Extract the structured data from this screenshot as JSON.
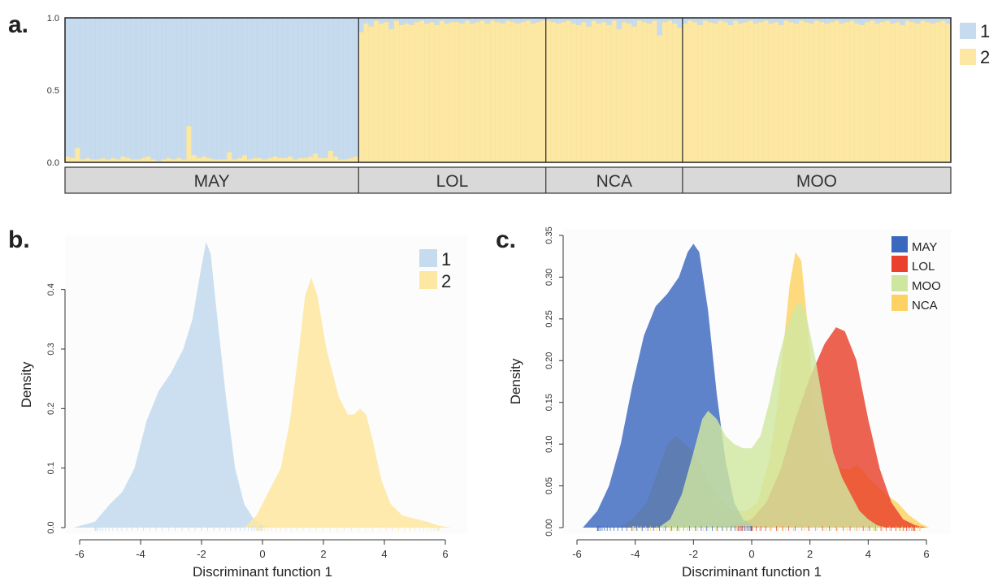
{
  "panel_labels": [
    "a.",
    "b.",
    "c."
  ],
  "chart_data": [
    {
      "type": "bar",
      "panel": "a.",
      "stacked": true,
      "ylim": [
        0,
        1
      ],
      "yticks": [
        "0.0",
        "0.5",
        "1.0"
      ],
      "series": [
        {
          "name": "1",
          "color": "#c6dcee"
        },
        {
          "name": "2",
          "color": "#fde8a3"
        }
      ],
      "groups": [
        {
          "label": "MAY",
          "n": 58,
          "cluster2": [
            0.04,
            0.03,
            0.1,
            0.02,
            0.03,
            0.02,
            0.02,
            0.03,
            0.02,
            0.03,
            0.02,
            0.04,
            0.03,
            0.02,
            0.02,
            0.03,
            0.04,
            0.02,
            0.01,
            0.02,
            0.03,
            0.02,
            0.03,
            0.02,
            0.25,
            0.05,
            0.03,
            0.04,
            0.03,
            0.02,
            0.02,
            0.02,
            0.07,
            0.02,
            0.03,
            0.05,
            0.02,
            0.03,
            0.03,
            0.02,
            0.03,
            0.04,
            0.03,
            0.03,
            0.04,
            0.02,
            0.03,
            0.03,
            0.04,
            0.06,
            0.03,
            0.03,
            0.08,
            0.04,
            0.02,
            0.02,
            0.03,
            0.04
          ]
        },
        {
          "label": "LOL",
          "n": 37,
          "cluster2": [
            0.9,
            0.96,
            0.94,
            0.98,
            0.96,
            0.97,
            0.92,
            0.98,
            0.95,
            0.96,
            0.95,
            0.97,
            0.98,
            0.96,
            0.97,
            0.95,
            0.98,
            0.96,
            0.97,
            0.97,
            0.96,
            0.98,
            0.96,
            0.97,
            0.98,
            0.96,
            0.98,
            0.97,
            0.96,
            0.98,
            0.97,
            0.96,
            0.97,
            0.98,
            0.96,
            0.97,
            0.98
          ]
        },
        {
          "label": "NCA",
          "n": 27,
          "cluster2": [
            0.98,
            0.97,
            0.96,
            0.97,
            0.98,
            0.96,
            0.95,
            0.97,
            0.94,
            0.98,
            0.96,
            0.97,
            0.95,
            0.98,
            0.92,
            0.97,
            0.96,
            0.94,
            0.98,
            0.97,
            0.96,
            0.98,
            0.88,
            0.97,
            0.98,
            0.96,
            0.93
          ]
        },
        {
          "label": "MOO",
          "n": 53,
          "cluster2": [
            0.96,
            0.98,
            0.97,
            0.95,
            0.98,
            0.97,
            0.96,
            0.98,
            0.97,
            0.95,
            0.98,
            0.96,
            0.97,
            0.98,
            0.96,
            0.97,
            0.98,
            0.96,
            0.97,
            0.95,
            0.98,
            0.97,
            0.96,
            0.98,
            0.97,
            0.96,
            0.98,
            0.97,
            0.96,
            0.97,
            0.98,
            0.96,
            0.97,
            0.98,
            0.96,
            0.95,
            0.97,
            0.98,
            0.96,
            0.97,
            0.98,
            0.96,
            0.97,
            0.95,
            0.98,
            0.97,
            0.96,
            0.98,
            0.97,
            0.96,
            0.97,
            0.98,
            0.96
          ]
        }
      ],
      "legend": [
        "1",
        "2"
      ]
    },
    {
      "type": "area",
      "panel": "b.",
      "xlabel": "Discriminant function 1",
      "ylabel": "Density",
      "xlim": [
        -6,
        6
      ],
      "ylim": [
        0,
        0.48
      ],
      "xticks": [
        "-6",
        "-4",
        "-2",
        "0",
        "2",
        "4",
        "6"
      ],
      "yticks": [
        "0.0",
        "0.1",
        "0.2",
        "0.3",
        "0.4"
      ],
      "legend": [
        "1",
        "2"
      ],
      "series": [
        {
          "name": "1",
          "color": "#c6dcee",
          "x": [
            -6.2,
            -5.5,
            -5.0,
            -4.6,
            -4.2,
            -3.8,
            -3.4,
            -3.0,
            -2.6,
            -2.3,
            -2.0,
            -1.85,
            -1.7,
            -1.5,
            -1.2,
            -0.9,
            -0.6,
            -0.3,
            0.0,
            0.3
          ],
          "y": [
            0.0,
            0.01,
            0.04,
            0.06,
            0.1,
            0.18,
            0.23,
            0.26,
            0.3,
            0.35,
            0.44,
            0.48,
            0.46,
            0.36,
            0.22,
            0.1,
            0.04,
            0.015,
            0.005,
            0.0
          ]
        },
        {
          "name": "2",
          "color": "#fde8a3",
          "x": [
            -0.6,
            -0.2,
            0.2,
            0.6,
            0.9,
            1.2,
            1.4,
            1.6,
            1.8,
            2.1,
            2.5,
            2.8,
            3.0,
            3.2,
            3.4,
            3.6,
            3.9,
            4.2,
            4.6,
            5.0,
            5.4,
            5.8,
            6.2
          ],
          "y": [
            0.0,
            0.02,
            0.06,
            0.1,
            0.18,
            0.3,
            0.39,
            0.42,
            0.39,
            0.3,
            0.22,
            0.19,
            0.19,
            0.2,
            0.19,
            0.15,
            0.08,
            0.04,
            0.02,
            0.015,
            0.01,
            0.003,
            0.0
          ]
        }
      ]
    },
    {
      "type": "area",
      "panel": "c.",
      "xlabel": "Discriminant function 1",
      "ylabel": "Density",
      "xlim": [
        -6,
        6
      ],
      "ylim": [
        0,
        0.35
      ],
      "xticks": [
        "-6",
        "-4",
        "-2",
        "0",
        "2",
        "4",
        "6"
      ],
      "yticks": [
        "0.00",
        "0.05",
        "0.10",
        "0.15",
        "0.20",
        "0.25",
        "0.30",
        "0.35"
      ],
      "legend": [
        "MAY",
        "LOL",
        "MOO",
        "NCA"
      ],
      "series": [
        {
          "name": "MAY",
          "color": "#3a68be",
          "x": [
            -5.8,
            -5.3,
            -4.9,
            -4.5,
            -4.1,
            -3.7,
            -3.3,
            -2.9,
            -2.5,
            -2.2,
            -2.0,
            -1.8,
            -1.5,
            -1.2,
            -0.9,
            -0.6,
            -0.3,
            0.0,
            0.3
          ],
          "y": [
            0.0,
            0.02,
            0.05,
            0.1,
            0.17,
            0.23,
            0.265,
            0.28,
            0.3,
            0.33,
            0.34,
            0.33,
            0.26,
            0.16,
            0.08,
            0.03,
            0.01,
            0.003,
            0.0
          ]
        },
        {
          "name": "LOL",
          "color": "#e9412b",
          "x": [
            -1.0,
            -0.5,
            0.0,
            0.5,
            1.0,
            1.5,
            2.0,
            2.5,
            2.9,
            3.2,
            3.6,
            4.0,
            4.4,
            4.8,
            5.2,
            5.6,
            6.0
          ],
          "y": [
            0.0,
            0.005,
            0.01,
            0.03,
            0.07,
            0.13,
            0.18,
            0.22,
            0.24,
            0.235,
            0.2,
            0.13,
            0.07,
            0.03,
            0.01,
            0.003,
            0.0
          ]
        },
        {
          "name": "MOO",
          "color": "#cfe6a0",
          "x": [
            -3.2,
            -2.8,
            -2.4,
            -2.0,
            -1.7,
            -1.5,
            -1.2,
            -0.9,
            -0.6,
            -0.3,
            0.0,
            0.3,
            0.6,
            0.9,
            1.2,
            1.5,
            1.7,
            1.9,
            2.2,
            2.5,
            2.8,
            3.1,
            3.4,
            3.7,
            4.0,
            4.3,
            4.6
          ],
          "y": [
            0.0,
            0.01,
            0.04,
            0.09,
            0.13,
            0.14,
            0.13,
            0.11,
            0.1,
            0.095,
            0.095,
            0.11,
            0.15,
            0.2,
            0.24,
            0.265,
            0.27,
            0.25,
            0.2,
            0.14,
            0.09,
            0.06,
            0.04,
            0.02,
            0.01,
            0.003,
            0.0
          ]
        },
        {
          "name": "NCA",
          "color": "#fdd262",
          "x": [
            -4.6,
            -4.1,
            -3.6,
            -3.2,
            -2.9,
            -2.6,
            -2.3,
            -2.0,
            -1.7,
            -1.4,
            -1.0,
            -0.6,
            -0.2,
            0.2,
            0.6,
            0.9,
            1.1,
            1.3,
            1.5,
            1.7,
            1.9,
            2.1,
            2.3,
            2.5,
            2.8,
            3.1,
            3.4,
            3.6,
            3.8,
            4.0,
            4.3,
            4.6,
            5.0,
            5.4,
            5.8,
            6.1
          ],
          "y": [
            0.0,
            0.01,
            0.03,
            0.07,
            0.1,
            0.11,
            0.1,
            0.09,
            0.07,
            0.05,
            0.03,
            0.02,
            0.02,
            0.03,
            0.08,
            0.15,
            0.22,
            0.29,
            0.33,
            0.32,
            0.25,
            0.16,
            0.11,
            0.09,
            0.08,
            0.07,
            0.07,
            0.075,
            0.07,
            0.06,
            0.05,
            0.04,
            0.03,
            0.015,
            0.005,
            0.0
          ]
        }
      ]
    }
  ],
  "panel_c_draw_order": [
    "NCA",
    "LOL",
    "MAY",
    "MOO"
  ]
}
